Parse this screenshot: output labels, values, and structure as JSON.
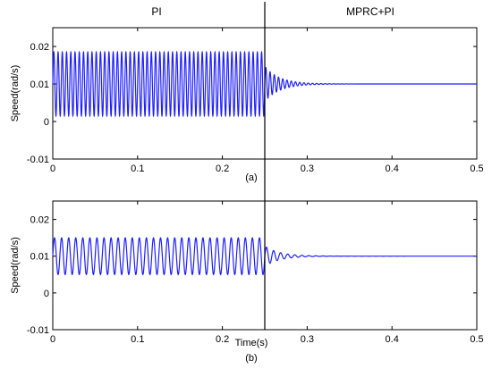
{
  "header": {
    "left_label": "PI",
    "right_label": "MPRC+PI"
  },
  "chart_data": [
    {
      "type": "line",
      "panel_label": "(a)",
      "xlabel": "",
      "ylabel": "Speed(rad/s)",
      "xlim": [
        0,
        0.5
      ],
      "ylim": [
        -0.01,
        0.025
      ],
      "xticks": [
        "0",
        "0.1",
        "0.2",
        "0.3",
        "0.4",
        "0.5"
      ],
      "yticks": [
        "-0.01",
        "0",
        "0.01",
        "0.02"
      ],
      "grid": false,
      "switch_time": 0.25,
      "series_color": "#1f1fff",
      "signal": {
        "mean": 0.01,
        "amplitude": 0.0085,
        "frequency_hz": 200,
        "settled_by": 0.32
      }
    },
    {
      "type": "line",
      "panel_label": "(b)",
      "xlabel": "Time(s)",
      "ylabel": "Speed(rad/s)",
      "xlim": [
        0,
        0.5
      ],
      "ylim": [
        -0.01,
        0.025
      ],
      "xticks": [
        "0",
        "0.1",
        "0.2",
        "0.3",
        "0.4",
        "0.5"
      ],
      "yticks": [
        "-0.01",
        "0",
        "0.01",
        "0.02"
      ],
      "grid": false,
      "switch_time": 0.25,
      "series_color": "#1f1fff",
      "signal": {
        "mean": 0.01,
        "amplitude": 0.005,
        "frequency_hz": 120,
        "settled_by": 0.32
      }
    }
  ]
}
